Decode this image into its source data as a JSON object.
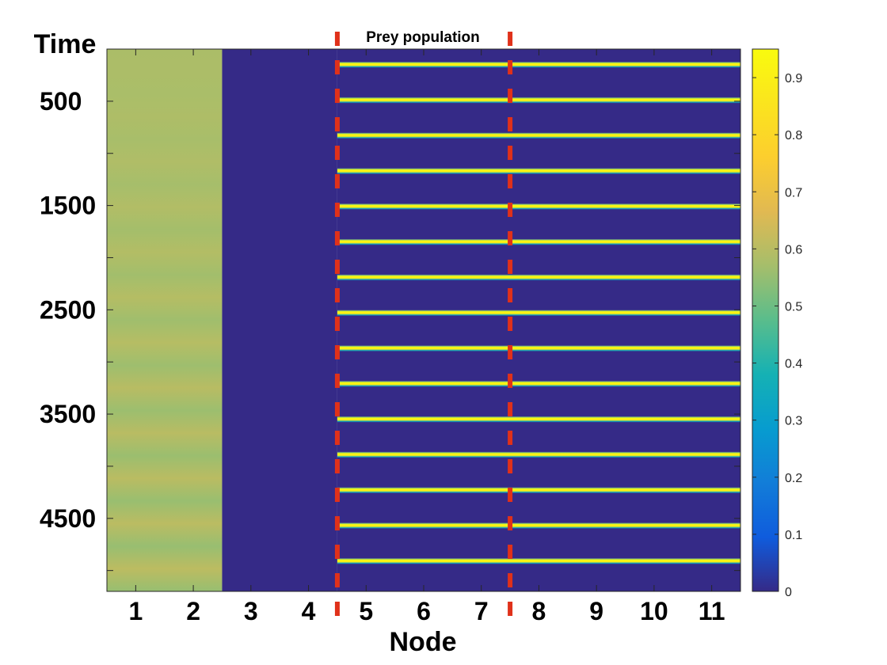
{
  "chart_data": {
    "type": "heatmap",
    "title": "Prey population",
    "xlabel": "Node",
    "ylabel": "Time",
    "x": [
      1,
      2,
      3,
      4,
      5,
      6,
      7,
      8,
      9,
      10,
      11
    ],
    "x_tick_labels": [
      "1",
      "2",
      "3",
      "4",
      "5",
      "6",
      "7",
      "8",
      "9",
      "10",
      "11"
    ],
    "xlim": [
      0.5,
      11.5
    ],
    "y_ticks": [
      500,
      1500,
      2500,
      3500,
      4500
    ],
    "y_tick_labels": [
      "500",
      "1500",
      "2500",
      "3500",
      "4500"
    ],
    "ylim": [
      0,
      5200
    ],
    "y_direction": "top-to-bottom",
    "colorbar": {
      "colormap": "parula",
      "range": [
        0,
        0.95
      ],
      "ticks": [
        0,
        0.1,
        0.2,
        0.3,
        0.4,
        0.5,
        0.6,
        0.7,
        0.8,
        0.9
      ],
      "tick_labels": [
        "0",
        "0.1",
        "0.2",
        "0.3",
        "0.4",
        "0.5",
        "0.6",
        "0.7",
        "0.8",
        "0.9"
      ]
    },
    "node_groups": [
      {
        "nodes": [
          1,
          2
        ],
        "pattern": "steady",
        "value_mean": 0.58,
        "value_amplitude": 0.03
      },
      {
        "nodes": [
          3,
          4
        ],
        "pattern": "extinct",
        "value": 0.0
      },
      {
        "nodes": [
          5,
          6,
          7,
          8,
          9,
          10,
          11
        ],
        "pattern": "pulses",
        "low": 0.0,
        "peak": 0.95,
        "period": 340,
        "first_pulse_time": 150,
        "pulse_width": 60
      }
    ],
    "annotations": [
      {
        "type": "dashed-vertical-line",
        "x": 4.5,
        "color": "#e0311a"
      },
      {
        "type": "dashed-vertical-line",
        "x": 7.5,
        "color": "#e0311a"
      }
    ]
  }
}
